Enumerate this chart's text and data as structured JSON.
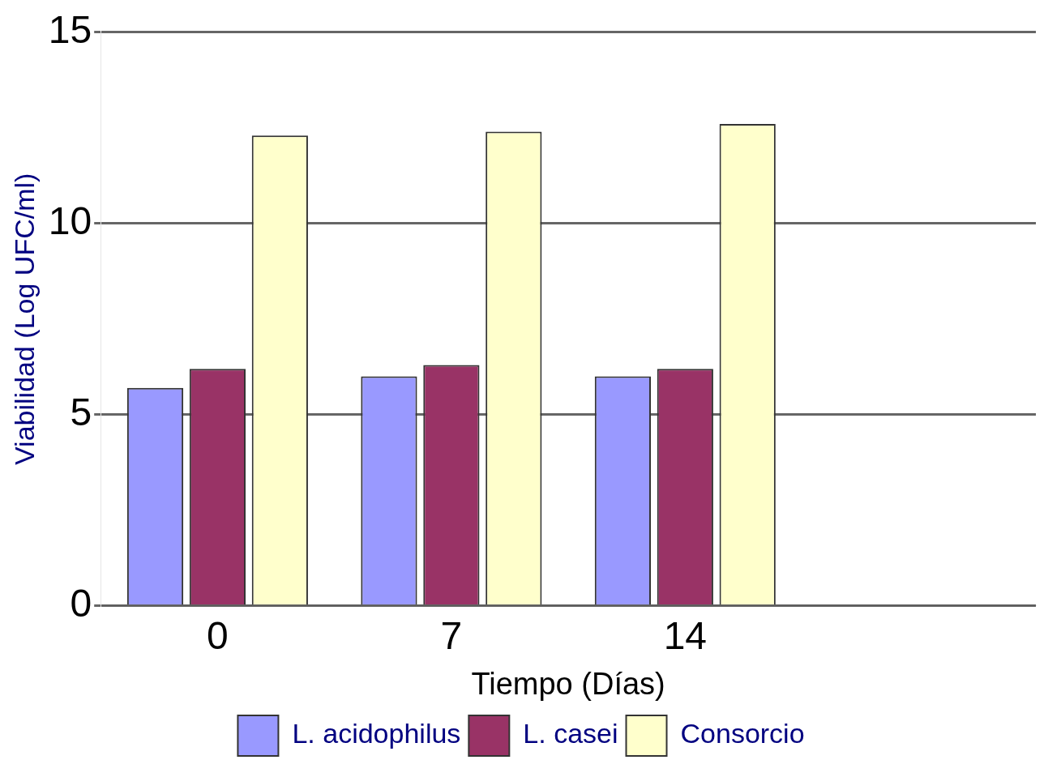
{
  "chart_data": {
    "type": "bar",
    "xlabel": "Tiempo (Días)",
    "ylabel": "Viabilidad (Log UFC/ml)",
    "categories": [
      "0",
      "7",
      "14",
      null
    ],
    "series": [
      {
        "name": "L. acidophilus",
        "color": "#9999ff",
        "values": [
          5.7,
          6.0,
          6.0,
          null
        ]
      },
      {
        "name": "L. casei",
        "color": "#993366",
        "values": [
          6.2,
          6.3,
          6.2,
          null
        ]
      },
      {
        "name": "Consorcio",
        "color": "#ffffcc",
        "values": [
          12.3,
          12.4,
          12.6,
          null
        ]
      }
    ],
    "ylim": [
      0,
      15
    ],
    "yticks": [
      0,
      5,
      10,
      15
    ],
    "grid": "y",
    "legend": "bottom"
  }
}
